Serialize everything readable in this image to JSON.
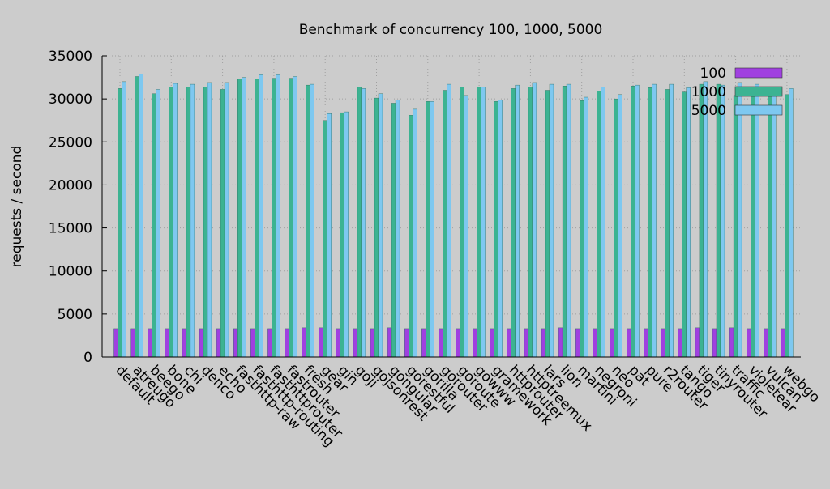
{
  "chart_data": {
    "type": "bar",
    "title": "Benchmark of concurrency 100, 1000, 5000",
    "xlabel": "",
    "ylabel": "requests / second",
    "ylim": [
      0,
      35000
    ],
    "yticks": [
      0,
      5000,
      10000,
      15000,
      20000,
      25000,
      30000,
      35000
    ],
    "grid": true,
    "legend_position": "top-right",
    "categories": [
      "default",
      "atreugo",
      "beego",
      "bone",
      "chi",
      "denco",
      "echo",
      "fasthttp-raw",
      "fasthttp-routing",
      "fasthttprouter",
      "fastrouter",
      "fresh",
      "gear",
      "gin",
      "goji",
      "gojsonrest",
      "gongular",
      "gorestful",
      "gorilla",
      "gorouter",
      "goroute",
      "gowww",
      "gramework",
      "httprouter",
      "httptreemux",
      "lars",
      "lion",
      "martini",
      "negroni",
      "neo",
      "pat",
      "pure",
      "r2router",
      "tango",
      "tiger",
      "tinyrouter",
      "traffic",
      "violetear",
      "vulcan",
      "webgo"
    ],
    "series": [
      {
        "name": "100",
        "color": "#a040e0",
        "values": [
          3300,
          3300,
          3300,
          3300,
          3300,
          3300,
          3300,
          3300,
          3300,
          3300,
          3300,
          3400,
          3400,
          3300,
          3300,
          3300,
          3400,
          3300,
          3300,
          3300,
          3300,
          3300,
          3300,
          3300,
          3300,
          3300,
          3400,
          3300,
          3300,
          3300,
          3300,
          3300,
          3300,
          3300,
          3400,
          3300,
          3400,
          3300,
          3300,
          3300
        ]
      },
      {
        "name": "1000",
        "color": "#3cb392",
        "values": [
          31200,
          32600,
          30600,
          31400,
          31400,
          31400,
          31100,
          32300,
          32300,
          32400,
          32400,
          31600,
          27500,
          28400,
          31400,
          30100,
          29500,
          28100,
          29700,
          31000,
          31400,
          31400,
          29700,
          31200,
          31400,
          31000,
          31500,
          29800,
          30900,
          30000,
          31500,
          31300,
          31100,
          30800,
          31700,
          31700,
          30400,
          31300,
          31300,
          30500
        ]
      },
      {
        "name": "5000",
        "color": "#7ec8f0",
        "values": [
          32000,
          32900,
          31100,
          31800,
          31700,
          31900,
          31900,
          32500,
          32800,
          32800,
          32600,
          31700,
          28300,
          28500,
          31200,
          30600,
          29900,
          28800,
          29700,
          31700,
          30400,
          31400,
          29900,
          31600,
          31900,
          31700,
          31700,
          30200,
          31400,
          30500,
          31600,
          31700,
          31700,
          31300,
          32000,
          31600,
          31900,
          31700,
          31400,
          31200
        ]
      }
    ]
  }
}
